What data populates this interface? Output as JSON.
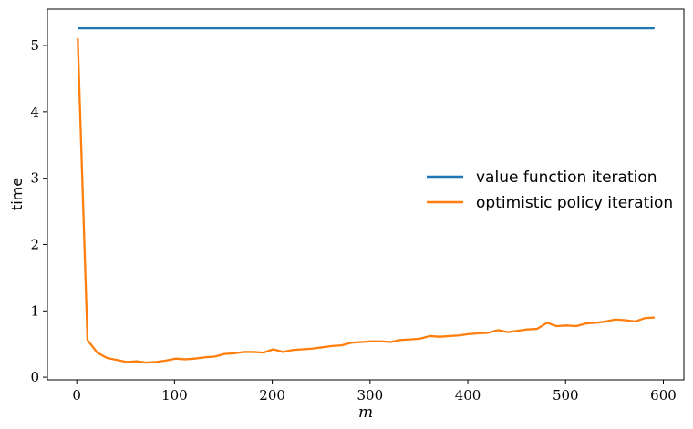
{
  "chart_data": {
    "type": "line",
    "title": "",
    "xlabel": "m",
    "ylabel": "time",
    "xlim": [
      -30,
      621
    ],
    "ylim": [
      -0.04,
      5.55
    ],
    "x_ticks": [
      0,
      100,
      200,
      300,
      400,
      500,
      600
    ],
    "y_ticks": [
      0,
      1,
      2,
      3,
      4,
      5
    ],
    "grid": false,
    "legend_position": "center-right",
    "series": [
      {
        "name": "value function iteration",
        "color": "#1f77b4",
        "x": [
          1,
          591
        ],
        "y": [
          5.26,
          5.26
        ]
      },
      {
        "name": "optimistic policy iteration",
        "color": "#ff7f0e",
        "x": [
          1,
          11,
          21,
          31,
          41,
          51,
          61,
          71,
          81,
          91,
          101,
          111,
          121,
          131,
          141,
          151,
          161,
          171,
          181,
          191,
          201,
          211,
          221,
          231,
          241,
          251,
          261,
          271,
          281,
          291,
          301,
          311,
          321,
          331,
          341,
          351,
          361,
          371,
          381,
          391,
          401,
          411,
          421,
          431,
          441,
          451,
          461,
          471,
          481,
          491,
          501,
          511,
          521,
          531,
          541,
          551,
          561,
          571,
          581,
          591
        ],
        "y": [
          5.11,
          0.56,
          0.37,
          0.29,
          0.26,
          0.23,
          0.24,
          0.22,
          0.23,
          0.25,
          0.28,
          0.27,
          0.28,
          0.3,
          0.31,
          0.35,
          0.36,
          0.38,
          0.38,
          0.37,
          0.42,
          0.38,
          0.41,
          0.42,
          0.43,
          0.45,
          0.47,
          0.48,
          0.52,
          0.53,
          0.54,
          0.54,
          0.53,
          0.56,
          0.57,
          0.58,
          0.62,
          0.61,
          0.62,
          0.63,
          0.65,
          0.66,
          0.67,
          0.71,
          0.68,
          0.7,
          0.72,
          0.73,
          0.82,
          0.77,
          0.78,
          0.77,
          0.81,
          0.82,
          0.84,
          0.87,
          0.86,
          0.84,
          0.89,
          0.9
        ]
      }
    ]
  }
}
